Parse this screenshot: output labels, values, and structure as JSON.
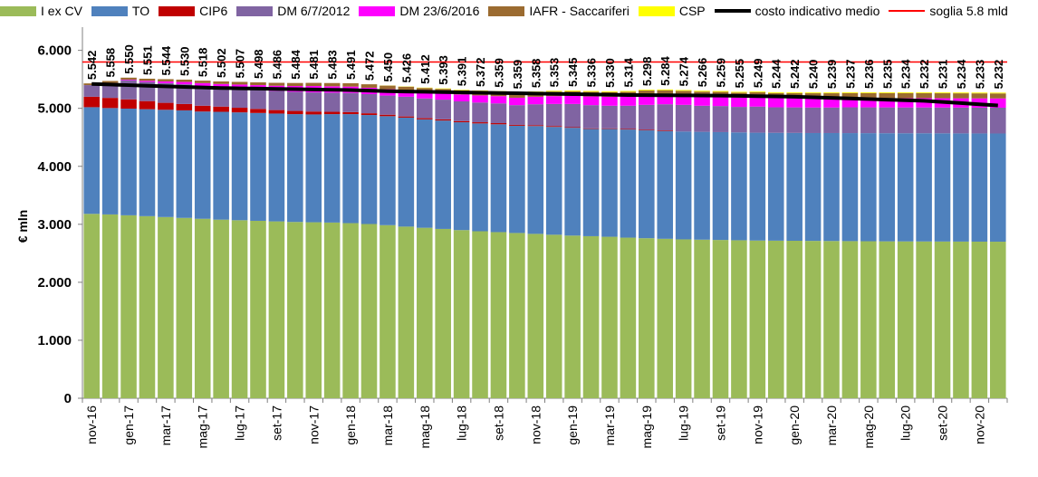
{
  "chart_data": {
    "type": "bar",
    "stacked": true,
    "ylabel": "€ mln",
    "ylim": [
      0,
      6400
    ],
    "yticks": [
      0,
      1000,
      2000,
      3000,
      4000,
      5000,
      6000
    ],
    "ytick_labels": [
      "0",
      "1.000",
      "2.000",
      "3.000",
      "4.000",
      "5.000",
      "6.000"
    ],
    "grid": false,
    "legend_position": "top",
    "categories": [
      "nov-16",
      "dic-16",
      "gen-17",
      "feb-17",
      "mar-17",
      "apr-17",
      "mag-17",
      "giu-17",
      "lug-17",
      "ago-17",
      "set-17",
      "ott-17",
      "nov-17",
      "dic-17",
      "gen-18",
      "feb-18",
      "mar-18",
      "apr-18",
      "mag-18",
      "giu-18",
      "lug-18",
      "ago-18",
      "set-18",
      "ott-18",
      "nov-18",
      "dic-18",
      "gen-19",
      "feb-19",
      "mar-19",
      "apr-19",
      "mag-19",
      "giu-19",
      "lug-19",
      "ago-19",
      "set-19",
      "ott-19",
      "nov-19",
      "dic-19",
      "gen-20",
      "feb-20",
      "mar-20",
      "apr-20",
      "mag-20",
      "giu-20",
      "lug-20",
      "ago-20",
      "set-20",
      "ott-20",
      "nov-20",
      "dic-20"
    ],
    "x_tick_labels": [
      "nov-16",
      "",
      "gen-17",
      "",
      "mar-17",
      "",
      "mag-17",
      "",
      "lug-17",
      "",
      "set-17",
      "",
      "nov-17",
      "",
      "gen-18",
      "",
      "mar-18",
      "",
      "mag-18",
      "",
      "lug-18",
      "",
      "set-18",
      "",
      "nov-18",
      "",
      "gen-19",
      "",
      "mar-19",
      "",
      "mag-19",
      "",
      "lug-19",
      "",
      "set-19",
      "",
      "nov-19",
      "",
      "gen-20",
      "",
      "mar-20",
      "",
      "mag-20",
      "",
      "lug-20",
      "",
      "set-20",
      "",
      "nov-20",
      ""
    ],
    "series": [
      {
        "name": "I ex CV",
        "color": "#9BBB59",
        "values": [
          3180,
          3170,
          3155,
          3140,
          3125,
          3110,
          3095,
          3080,
          3070,
          3060,
          3050,
          3040,
          3035,
          3030,
          3020,
          3005,
          2985,
          2960,
          2940,
          2920,
          2900,
          2880,
          2865,
          2850,
          2835,
          2820,
          2805,
          2795,
          2785,
          2770,
          2760,
          2750,
          2740,
          2735,
          2730,
          2725,
          2720,
          2718,
          2716,
          2714,
          2712,
          2710,
          2708,
          2706,
          2705,
          2704,
          2703,
          2702,
          2701,
          2700
        ]
      },
      {
        "name": "TO",
        "color": "#4F81BD",
        "values": [
          1840,
          1835,
          1840,
          1845,
          1850,
          1855,
          1850,
          1860,
          1860,
          1860,
          1860,
          1860,
          1860,
          1870,
          1880,
          1880,
          1880,
          1880,
          1870,
          1870,
          1860,
          1860,
          1860,
          1850,
          1860,
          1860,
          1860,
          1850,
          1860,
          1865,
          1860,
          1860,
          1860,
          1860,
          1860,
          1860,
          1860,
          1860,
          1860,
          1860,
          1862,
          1863,
          1864,
          1865,
          1865,
          1866,
          1866,
          1866,
          1866,
          1866
        ]
      },
      {
        "name": "CIP6",
        "color": "#C00000",
        "values": [
          180,
          175,
          160,
          140,
          120,
          110,
          100,
          90,
          80,
          70,
          60,
          55,
          50,
          40,
          35,
          30,
          25,
          20,
          20,
          20,
          20,
          20,
          20,
          15,
          15,
          15,
          10,
          10,
          10,
          10,
          10,
          10,
          0,
          0,
          0,
          0,
          0,
          0,
          0,
          0,
          0,
          0,
          0,
          0,
          0,
          0,
          0,
          0,
          0,
          0
        ]
      },
      {
        "name": "DM 6/7/2012",
        "color": "#8064A2",
        "values": [
          200,
          260,
          330,
          330,
          340,
          340,
          340,
          330,
          330,
          330,
          330,
          330,
          330,
          330,
          330,
          330,
          330,
          340,
          340,
          340,
          340,
          340,
          340,
          340,
          360,
          380,
          400,
          400,
          390,
          400,
          430,
          450,
          460,
          450,
          450,
          440,
          450,
          440,
          440,
          440,
          440,
          445,
          445,
          445,
          445,
          445,
          445,
          445,
          445,
          445
        ]
      },
      {
        "name": "DM 23/6/2016",
        "color": "#FF00FF",
        "values": [
          0,
          0,
          10,
          20,
          30,
          40,
          50,
          60,
          70,
          80,
          90,
          100,
          110,
          110,
          110,
          110,
          110,
          110,
          115,
          117,
          120,
          123,
          125,
          128,
          130,
          135,
          140,
          150,
          155,
          160,
          165,
          160,
          160,
          160,
          160,
          160,
          160,
          160,
          160,
          160,
          160,
          160,
          160,
          160,
          160,
          160,
          160,
          160,
          160,
          160
        ]
      },
      {
        "name": "IAFR - Saccariferi",
        "color": "#9B6B30",
        "values": [
          30,
          32,
          34,
          36,
          38,
          40,
          42,
          44,
          46,
          48,
          50,
          52,
          54,
          56,
          58,
          60,
          62,
          64,
          66,
          68,
          70,
          72,
          72,
          74,
          76,
          78,
          78,
          80,
          80,
          80,
          82,
          82,
          82,
          84,
          84,
          86,
          86,
          86,
          86,
          86,
          86,
          86,
          86,
          86,
          86,
          86,
          86,
          86,
          86,
          86
        ]
      },
      {
        "name": "CSP",
        "color": "#FFFF00",
        "values": [
          0,
          0,
          0,
          0,
          0,
          0,
          0,
          0,
          0,
          0,
          0,
          0,
          0,
          0,
          0,
          0,
          2,
          4,
          6,
          8,
          10,
          12,
          14,
          14,
          14,
          14,
          14,
          14,
          14,
          14,
          14,
          14,
          14,
          14,
          14,
          14,
          14,
          14,
          14,
          14,
          14,
          14,
          14,
          14,
          14,
          14,
          14,
          14,
          14,
          14
        ]
      }
    ],
    "lines": [
      {
        "name": "costo indicativo medio",
        "color": "#000000",
        "values": [
          5420,
          5410,
          5400,
          5390,
          5380,
          5370,
          5360,
          5350,
          5345,
          5340,
          5335,
          5330,
          5325,
          5320,
          5315,
          5305,
          5295,
          5290,
          5285,
          5280,
          5275,
          5270,
          5265,
          5260,
          5255,
          5250,
          5245,
          5240,
          5235,
          5230,
          5228,
          5226,
          5224,
          5222,
          5220,
          5215,
          5210,
          5205,
          5200,
          5190,
          5180,
          5170,
          5160,
          5150,
          5140,
          5130,
          5110,
          5090,
          5070,
          5050
        ]
      },
      {
        "name": "soglia 5.8 mld",
        "color": "#FF0000",
        "values": [
          5800,
          5800,
          5800,
          5800,
          5800,
          5800,
          5800,
          5800,
          5800,
          5800,
          5800,
          5800,
          5800,
          5800,
          5800,
          5800,
          5800,
          5800,
          5800,
          5800,
          5800,
          5800,
          5800,
          5800,
          5800,
          5800,
          5800,
          5800,
          5800,
          5800,
          5800,
          5800,
          5800,
          5800,
          5800,
          5800,
          5800,
          5800,
          5800,
          5800,
          5800,
          5800,
          5800,
          5800,
          5800,
          5800,
          5800,
          5800,
          5800,
          5800
        ]
      }
    ],
    "data_labels": [
      "5.542",
      "5.558",
      "5.550",
      "5.551",
      "5.544",
      "5.530",
      "5.518",
      "5.502",
      "5.507",
      "5.498",
      "5.486",
      "5.484",
      "5.481",
      "5.483",
      "5.491",
      "5.472",
      "5.450",
      "5.426",
      "5.412",
      "5.393",
      "5.391",
      "5.372",
      "5.359",
      "5.359",
      "5.358",
      "5.353",
      "5.345",
      "5.336",
      "5.330",
      "5.314",
      "5.298",
      "5.284",
      "5.274",
      "5.266",
      "5.259",
      "5.255",
      "5.249",
      "5.244",
      "5.242",
      "5.240",
      "5.239",
      "5.237",
      "5.236",
      "5.235",
      "5.234",
      "5.232",
      "5.231",
      "5.234",
      "5.233",
      "5.232"
    ]
  }
}
